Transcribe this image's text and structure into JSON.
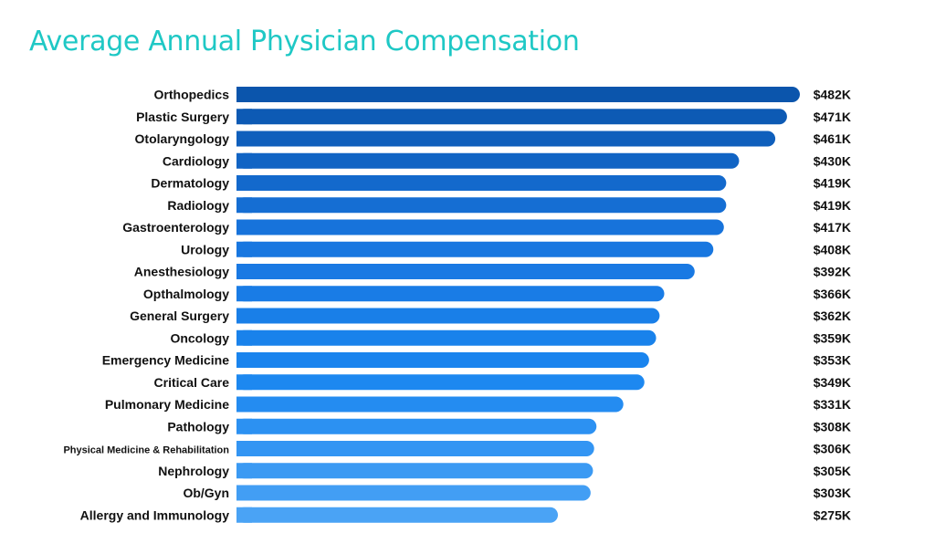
{
  "chart_data": {
    "type": "bar",
    "orientation": "horizontal",
    "title": "Average Annual Physician Compensation",
    "xlabel": "",
    "ylabel": "",
    "grid": false,
    "categories": [
      "Orthopedics",
      "Plastic Surgery",
      "Otolaryngology",
      "Cardiology",
      "Dermatology",
      "Radiology",
      "Gastroenterology",
      "Urology",
      "Anesthesiology",
      "Opthalmology",
      "General Surgery",
      "Oncology",
      "Emergency Medicine",
      "Critical Care",
      "Pulmonary Medicine",
      "Pathology",
      "Physical Medicine & Rehabilitation",
      "Nephrology",
      "Ob/Gyn",
      "Allergy and Immunology"
    ],
    "values": [
      482,
      471,
      461,
      430,
      419,
      419,
      417,
      408,
      392,
      366,
      362,
      359,
      353,
      349,
      331,
      308,
      306,
      305,
      303,
      275
    ],
    "value_labels": [
      "$482K",
      "$471K",
      "$461K",
      "$430K",
      "$419K",
      "$419K",
      "$417K",
      "$408K",
      "$392K",
      "$366K",
      "$362K",
      "$359K",
      "$353K",
      "$349K",
      "$331K",
      "$308K",
      "$306K",
      "$305K",
      "$303K",
      "$275K"
    ],
    "colors": {
      "title": "#1fc8c5",
      "bar_gradient": [
        "#0b55ac",
        "#1875de",
        "#1a86f0",
        "#4aa3f5"
      ]
    }
  }
}
